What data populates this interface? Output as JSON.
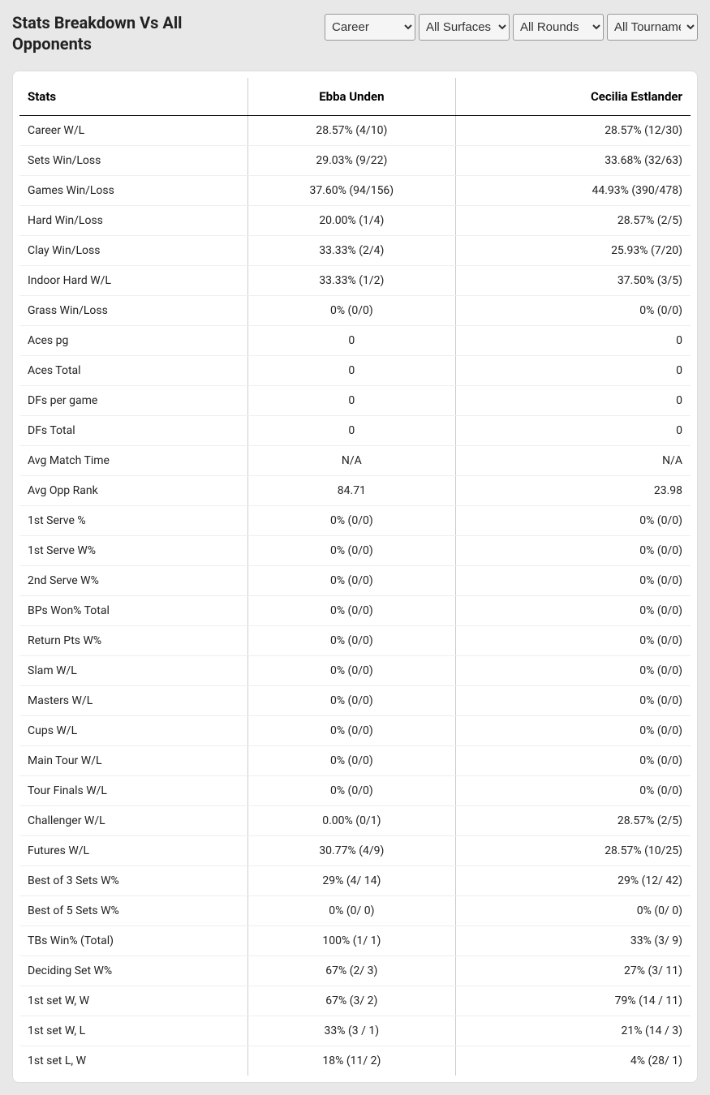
{
  "header": {
    "title": "Stats Breakdown Vs All Opponents"
  },
  "filters": {
    "period": {
      "selected": "Career",
      "options": [
        "Career"
      ]
    },
    "surface": {
      "selected": "All Surfaces",
      "options": [
        "All Surfaces"
      ]
    },
    "rounds": {
      "selected": "All Rounds",
      "options": [
        "All Rounds"
      ]
    },
    "tournaments": {
      "selected": "All Tournaments",
      "options": [
        "All Tournaments"
      ]
    }
  },
  "table": {
    "columns": [
      "Stats",
      "Ebba Unden",
      "Cecilia Estlander"
    ],
    "rows": [
      [
        "Career W/L",
        "28.57% (4/10)",
        "28.57% (12/30)"
      ],
      [
        "Sets Win/Loss",
        "29.03% (9/22)",
        "33.68% (32/63)"
      ],
      [
        "Games Win/Loss",
        "37.60% (94/156)",
        "44.93% (390/478)"
      ],
      [
        "Hard Win/Loss",
        "20.00% (1/4)",
        "28.57% (2/5)"
      ],
      [
        "Clay Win/Loss",
        "33.33% (2/4)",
        "25.93% (7/20)"
      ],
      [
        "Indoor Hard W/L",
        "33.33% (1/2)",
        "37.50% (3/5)"
      ],
      [
        "Grass Win/Loss",
        "0% (0/0)",
        "0% (0/0)"
      ],
      [
        "Aces pg",
        "0",
        "0"
      ],
      [
        "Aces Total",
        "0",
        "0"
      ],
      [
        "DFs per game",
        "0",
        "0"
      ],
      [
        "DFs Total",
        "0",
        "0"
      ],
      [
        "Avg Match Time",
        "N/A",
        "N/A"
      ],
      [
        "Avg Opp Rank",
        "84.71",
        "23.98"
      ],
      [
        "1st Serve %",
        "0% (0/0)",
        "0% (0/0)"
      ],
      [
        "1st Serve W%",
        "0% (0/0)",
        "0% (0/0)"
      ],
      [
        "2nd Serve W%",
        "0% (0/0)",
        "0% (0/0)"
      ],
      [
        "BPs Won% Total",
        "0% (0/0)",
        "0% (0/0)"
      ],
      [
        "Return Pts W%",
        "0% (0/0)",
        "0% (0/0)"
      ],
      [
        "Slam W/L",
        "0% (0/0)",
        "0% (0/0)"
      ],
      [
        "Masters W/L",
        "0% (0/0)",
        "0% (0/0)"
      ],
      [
        "Cups W/L",
        "0% (0/0)",
        "0% (0/0)"
      ],
      [
        "Main Tour W/L",
        "0% (0/0)",
        "0% (0/0)"
      ],
      [
        "Tour Finals W/L",
        "0% (0/0)",
        "0% (0/0)"
      ],
      [
        "Challenger W/L",
        "0.00% (0/1)",
        "28.57% (2/5)"
      ],
      [
        "Futures W/L",
        "30.77% (4/9)",
        "28.57% (10/25)"
      ],
      [
        "Best of 3 Sets W%",
        "29% (4/ 14)",
        "29% (12/ 42)"
      ],
      [
        "Best of 5 Sets W%",
        "0% (0/ 0)",
        "0% (0/ 0)"
      ],
      [
        "TBs Win% (Total)",
        "100% (1/ 1)",
        "33% (3/ 9)"
      ],
      [
        "Deciding Set W%",
        "67% (2/ 3)",
        "27% (3/ 11)"
      ],
      [
        "1st set W, W",
        "67% (3/ 2)",
        "79% (14 / 11)"
      ],
      [
        "1st set W, L",
        "33% (3 / 1)",
        "21% (14 / 3)"
      ],
      [
        "1st set L, W",
        "18% (11/ 2)",
        "4% (28/ 1)"
      ]
    ]
  },
  "styles": {
    "background_color": "#e8e8e8",
    "table_background": "#ffffff",
    "header_border_color": "#000000",
    "cell_border_color": "#cccccc",
    "row_border_color": "#eeeeee",
    "text_color": "#222222"
  }
}
